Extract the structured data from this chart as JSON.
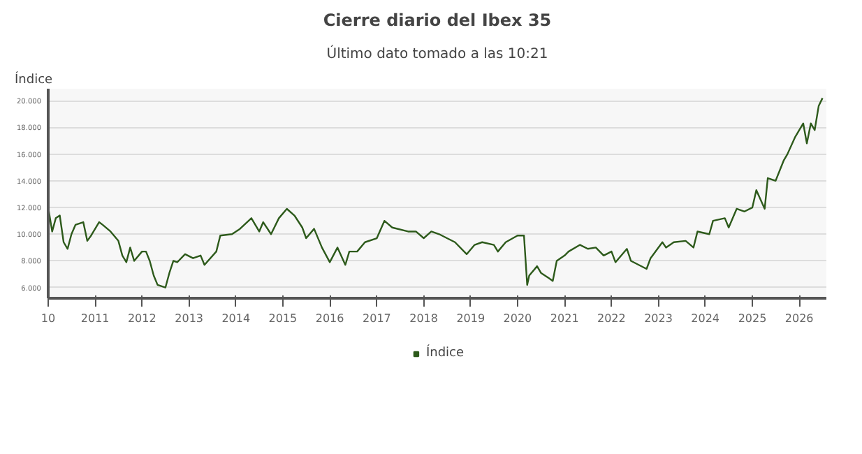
{
  "chart_data": {
    "type": "line",
    "title": "Cierre diario del Ibex 35",
    "subtitle": "Último dato tomado a las 10:21",
    "ylabel": "Índice",
    "x": [
      "2010-01",
      "2010-02",
      "2010-03",
      "2010-04",
      "2010-05",
      "2010-06",
      "2010-07",
      "2010-08",
      "2010-10",
      "2010-11",
      "2010-12",
      "2011-02",
      "2011-03",
      "2011-05",
      "2011-07",
      "2011-08",
      "2011-09",
      "2011-10",
      "2011-11",
      "2012-01",
      "2012-02",
      "2012-03",
      "2012-04",
      "2012-05",
      "2012-07",
      "2012-08",
      "2012-09",
      "2012-10",
      "2012-12",
      "2013-02",
      "2013-04",
      "2013-05",
      "2013-08",
      "2013-09",
      "2013-12",
      "2014-02",
      "2014-05",
      "2014-07",
      "2014-08",
      "2014-10",
      "2014-12",
      "2015-02",
      "2015-04",
      "2015-06",
      "2015-07",
      "2015-09",
      "2015-11",
      "2016-01",
      "2016-03",
      "2016-05",
      "2016-06",
      "2016-08",
      "2016-10",
      "2017-01",
      "2017-03",
      "2017-05",
      "2017-09",
      "2017-11",
      "2018-01",
      "2018-03",
      "2018-05",
      "2018-07",
      "2018-09",
      "2018-12",
      "2019-02",
      "2019-04",
      "2019-07",
      "2019-08",
      "2019-10",
      "2020-01",
      "2020-02-20",
      "2020-03-16",
      "2020-04",
      "2020-06",
      "2020-07",
      "2020-09",
      "2020-10",
      "2020-11",
      "2021-01",
      "2021-02",
      "2021-05",
      "2021-07",
      "2021-09",
      "2021-11",
      "2022-01",
      "2022-02",
      "2022-05",
      "2022-06",
      "2022-10",
      "2022-11",
      "2023-02",
      "2023-03",
      "2023-05",
      "2023-08",
      "2023-10",
      "2023-11",
      "2024-02",
      "2024-03",
      "2024-06",
      "2024-07",
      "2024-09",
      "2024-11",
      "2025-01",
      "2025-02",
      "2025-04-07",
      "2025-05",
      "2025-07",
      "2025-09",
      "2025-10",
      "2025-12",
      "2026-02",
      "2026-03",
      "2026-04",
      "2026-05",
      "2026-06",
      "2026-07"
    ],
    "series": [
      {
        "name": "Índice",
        "color": "#2d5a1b",
        "values": [
          12000,
          10200,
          11200,
          11400,
          9400,
          8900,
          10000,
          10700,
          10900,
          9500,
          9900,
          10900,
          10700,
          10200,
          9500,
          8400,
          7900,
          9000,
          8000,
          8700,
          8700,
          8000,
          6900,
          6200,
          6000,
          7100,
          8000,
          7900,
          8500,
          8200,
          8400,
          7700,
          8700,
          9900,
          10000,
          10400,
          11200,
          10200,
          10900,
          10000,
          11200,
          11900,
          11400,
          10500,
          9700,
          10400,
          9000,
          7900,
          9000,
          7700,
          8700,
          8700,
          9400,
          9700,
          11000,
          10500,
          10200,
          10200,
          9700,
          10200,
          10000,
          9700,
          9400,
          8500,
          9200,
          9400,
          9200,
          8700,
          9400,
          9900,
          9900,
          6200,
          6900,
          7600,
          7100,
          6700,
          6500,
          8000,
          8400,
          8700,
          9200,
          8900,
          9000,
          8400,
          8700,
          7900,
          8900,
          8000,
          7400,
          8200,
          9400,
          9000,
          9400,
          9500,
          9000,
          10200,
          10000,
          11000,
          11200,
          10500,
          11900,
          11700,
          12000,
          13300,
          11900,
          14200,
          14000,
          15500,
          16000,
          17300,
          18300,
          16800,
          18300,
          17800,
          19600,
          20200
        ]
      }
    ],
    "xlim": [
      "2010-01-01",
      "2026-07-31"
    ],
    "xticks": [
      {
        "value": "2010-01-01",
        "label": "10"
      },
      {
        "value": "2011-01-01",
        "label": "2011"
      },
      {
        "value": "2012-01-01",
        "label": "2012"
      },
      {
        "value": "2013-01-01",
        "label": "2013"
      },
      {
        "value": "2014-01-01",
        "label": "2014"
      },
      {
        "value": "2015-01-01",
        "label": "2015"
      },
      {
        "value": "2016-01-01",
        "label": "2016"
      },
      {
        "value": "2017-01-01",
        "label": "2017"
      },
      {
        "value": "2018-01-01",
        "label": "2018"
      },
      {
        "value": "2019-01-01",
        "label": "2019"
      },
      {
        "value": "2020-01-01",
        "label": "2020"
      },
      {
        "value": "2021-01-01",
        "label": "2021"
      },
      {
        "value": "2022-01-01",
        "label": "2022"
      },
      {
        "value": "2023-01-01",
        "label": "2023"
      },
      {
        "value": "2024-01-01",
        "label": "2024"
      },
      {
        "value": "2025-01-01",
        "label": "2025"
      },
      {
        "value": "2026-01-01",
        "label": "2026"
      }
    ],
    "ylim": [
      5200,
      20900
    ],
    "yticks": [
      {
        "value": 6000,
        "label": "6.000"
      },
      {
        "value": 8000,
        "label": "8.000"
      },
      {
        "value": 10000,
        "label": "10.000"
      },
      {
        "value": 12000,
        "label": "12.000"
      },
      {
        "value": 14000,
        "label": "14.000"
      },
      {
        "value": 16000,
        "label": "16.000"
      },
      {
        "value": 18000,
        "label": "18.000"
      },
      {
        "value": 20000,
        "label": "20.000"
      }
    ],
    "grid": "y",
    "legend": "bottom",
    "marker": "none",
    "line_style": "solid"
  }
}
